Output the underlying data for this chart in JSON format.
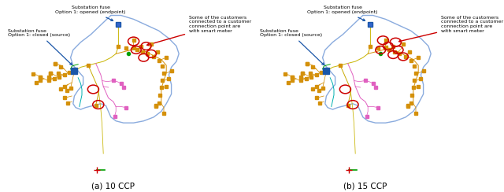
{
  "bg_color": "#ffffff",
  "fig_width": 6.4,
  "fig_height": 2.44,
  "dpi": 100,
  "caption_a": "(a) 10 CCP",
  "caption_b": "(b) 15 CCP",
  "ann_source": "Substation fuse\nOption 1: closed (source)",
  "ann_endpoint": "Substation fuse\nOption 1: opened (endpoint)",
  "ann_smart": "Some of the customers\nconnected to a customer\nconnection point are\nwith smart meter",
  "blob_color": "#8AABDE",
  "src_color": "#1A56A8",
  "ep_color": "#1A56A8",
  "orange_color": "#D4900A",
  "pink_color": "#E060C0",
  "yellow_color": "#C8B400",
  "cyan_color": "#00B0B0",
  "green_color": "#00A000",
  "red_color": "#CC0000",
  "ann_arrow_blue": "#1A56A8",
  "ann_arrow_red": "#CC0000",
  "font_size_ann": 4.5,
  "font_size_cap": 7.5
}
